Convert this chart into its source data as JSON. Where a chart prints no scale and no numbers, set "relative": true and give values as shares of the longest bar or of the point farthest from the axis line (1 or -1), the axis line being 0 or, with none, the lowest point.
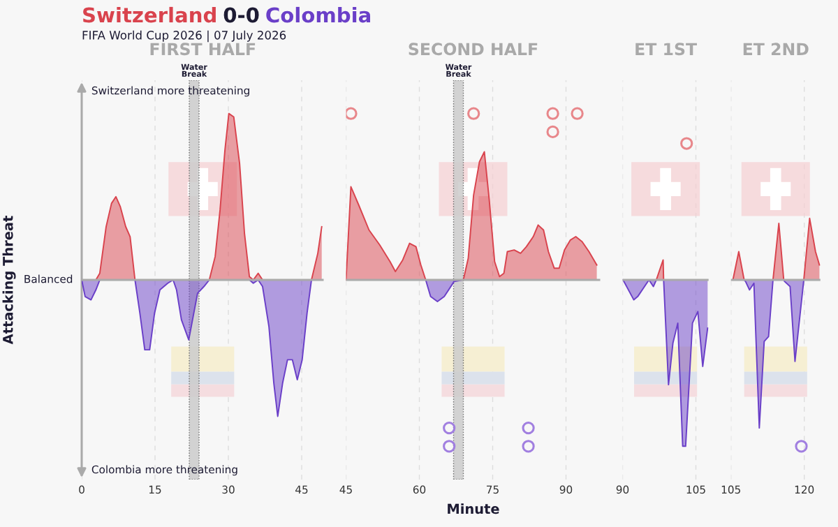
{
  "chart_data": [
    {
      "type": "area",
      "title": "FIRST HALF",
      "ylabel": "Attacking Threat",
      "relative": true,
      "grid": "x",
      "tick_labels": "x",
      "xlim": [
        0,
        49.5
      ],
      "xticks": [
        0,
        15,
        30,
        45
      ],
      "annotations": [
        "Switzerland 0-0 Colombia",
        "FIFA World Cup 2026 | 07 July 2026",
        "Switzerland more threatening",
        "Colombia more threatening",
        {
          "text": "Balanced",
          "x": 0,
          "y": 0
        }
      ],
      "x": [
        0,
        0.7,
        1.9,
        2.9,
        3.7,
        5,
        6.1,
        7,
        7.9,
        9,
        9.9,
        10.9,
        11.9,
        12.9,
        13.9,
        14.9,
        16,
        17.6,
        18.7,
        19.4,
        20.4,
        21.9,
        23.7,
        25,
        26.1,
        27.3,
        28.3,
        29.3,
        30.1,
        31.1,
        32.3,
        33.3,
        34.3,
        35.1,
        36.1,
        37,
        38.3,
        39.3,
        40.1,
        41.1,
        42.1,
        43.1,
        44.1,
        45.1,
        46.1,
        47,
        48.3,
        49.1
      ],
      "series": [
        {
          "color": "#d9434d",
          "values": [
            0,
            0,
            0,
            0,
            0.04,
            0.32,
            0.46,
            0.5,
            0.44,
            0.32,
            0.26,
            0,
            0,
            0,
            0,
            0,
            0,
            0,
            0,
            0,
            0,
            0,
            0,
            0,
            0,
            0.14,
            0.42,
            0.78,
            1,
            0.98,
            0.7,
            0.28,
            0.02,
            0,
            0.04,
            0,
            0,
            0,
            0,
            0,
            0,
            0,
            0,
            0,
            0,
            0,
            0.16,
            0.32
          ]
        },
        {
          "color": "#6a3fc8",
          "values": [
            0,
            -0.1,
            -0.12,
            -0.06,
            0,
            0,
            0,
            0,
            0,
            0,
            0,
            0,
            -0.2,
            -0.42,
            -0.42,
            -0.2,
            -0.06,
            -0.02,
            0,
            -0.06,
            -0.24,
            -0.36,
            -0.08,
            -0.04,
            0,
            0,
            0,
            0,
            0,
            0,
            0,
            0,
            0,
            -0.02,
            0,
            -0.04,
            -0.28,
            -0.62,
            -0.82,
            -0.62,
            -0.48,
            -0.48,
            -0.6,
            -0.48,
            -0.2,
            0,
            0,
            0
          ]
        }
      ],
      "bands": [
        {
          "axis": "x",
          "from": 22,
          "to": 24,
          "label": "Water Break",
          "color": "#cccccc"
        }
      ]
    },
    {
      "type": "area",
      "title": "SECOND HALF",
      "xlabel": "Minute",
      "relative": true,
      "grid": "x",
      "tick_labels": "x",
      "xlim": [
        45,
        97
      ],
      "xticks": [
        45,
        60,
        75,
        90
      ],
      "x": [
        45,
        46,
        47.6,
        49.7,
        51.9,
        54,
        55.1,
        56.6,
        58,
        59.3,
        60.3,
        61.3,
        62.3,
        63.7,
        65.1,
        67.1,
        69,
        70,
        71.1,
        72.3,
        73.3,
        74.3,
        75.4,
        76.4,
        77.3,
        78,
        79.4,
        80.7,
        81.9,
        83.3,
        84.3,
        85.4,
        86.4,
        87.6,
        88.6,
        89.7,
        90.9,
        92,
        93.3,
        94.7,
        96.3
      ],
      "series": [
        {
          "color": "#d9434d",
          "values": [
            0,
            0.56,
            0.45,
            0.3,
            0.21,
            0.11,
            0.05,
            0.12,
            0.22,
            0.2,
            0.09,
            0,
            0,
            0,
            0,
            0,
            0,
            0.13,
            0.51,
            0.71,
            0.77,
            0.48,
            0.11,
            0.02,
            0.04,
            0.17,
            0.18,
            0.16,
            0.2,
            0.26,
            0.33,
            0.3,
            0.17,
            0.07,
            0.07,
            0.18,
            0.24,
            0.26,
            0.23,
            0.17,
            0.09
          ]
        },
        {
          "color": "#6a3fc8",
          "values": [
            0,
            0,
            0,
            0,
            0,
            0,
            0,
            0,
            0,
            0,
            0,
            0,
            -0.1,
            -0.13,
            -0.1,
            -0.01,
            0,
            0,
            0,
            0,
            0,
            0,
            0,
            0,
            0,
            0,
            0,
            0,
            0,
            0,
            0,
            0,
            0,
            0,
            0,
            0,
            0,
            0,
            0,
            0,
            0
          ]
        },
        {
          "type": "scatter",
          "marker": "circle",
          "color": "#e8878b",
          "x": [
            46,
            71.1,
            87.3,
            87.3,
            92.3
          ],
          "values": [
            1,
            1,
            1,
            0.89,
            1
          ]
        },
        {
          "type": "scatter",
          "marker": "circle",
          "color": "#a17fe0",
          "x": [
            66.1,
            66.1,
            82.3,
            82.3
          ],
          "values": [
            -0.89,
            -1,
            -0.89,
            -1
          ]
        }
      ],
      "bands": [
        {
          "axis": "x",
          "from": 67,
          "to": 69,
          "label": "Water Break",
          "color": "#cccccc"
        }
      ]
    },
    {
      "type": "area",
      "title": "ET 1ST",
      "relative": true,
      "grid": "x",
      "tick_labels": "x",
      "xlim": [
        90,
        107.6
      ],
      "xticks": [
        90,
        105
      ],
      "x": [
        90.1,
        92.3,
        93.1,
        95.4,
        96.3,
        96.9,
        98.3,
        98.4,
        99.4,
        100.3,
        101.3,
        102.3,
        102.9,
        104.3,
        105.4,
        106.4,
        107.4
      ],
      "series": [
        {
          "color": "#d9434d",
          "values": [
            0,
            0,
            0,
            0,
            0,
            0,
            0.12,
            0,
            0,
            0,
            0,
            0,
            0,
            0,
            0,
            0,
            0
          ]
        },
        {
          "color": "#6a3fc8",
          "values": [
            0,
            -0.12,
            -0.1,
            0,
            -0.04,
            0,
            0,
            0,
            -0.63,
            -0.38,
            -0.26,
            -1,
            -1,
            -0.26,
            -0.19,
            -0.52,
            -0.29
          ]
        },
        {
          "type": "scatter",
          "marker": "circle",
          "color": "#e8878b",
          "x": [
            103.1
          ],
          "values": [
            0.82
          ]
        }
      ]
    },
    {
      "type": "area",
      "title": "ET 2ND",
      "relative": true,
      "grid": "x",
      "tick_labels": "x",
      "xlim": [
        105,
        123.3
      ],
      "xticks": [
        105,
        120
      ],
      "x": [
        105.4,
        106.6,
        107.7,
        108,
        108.8,
        109.7,
        110.8,
        111.8,
        112.7,
        113.6,
        114.8,
        115.8,
        116,
        117.1,
        118.1,
        119.9,
        121.1,
        122.3,
        123.1
      ],
      "series": [
        {
          "color": "#d9434d",
          "values": [
            0,
            0.17,
            0,
            0,
            0,
            0,
            0,
            0,
            0,
            0,
            0.34,
            0,
            0,
            0,
            0,
            0,
            0.37,
            0.17,
            0.09
          ]
        },
        {
          "color": "#6a3fc8",
          "values": [
            0,
            0,
            0,
            -0.01,
            -0.06,
            -0.02,
            -0.89,
            -0.37,
            -0.34,
            0,
            0,
            0,
            -0.01,
            -0.04,
            -0.49,
            0,
            0,
            0,
            0
          ]
        },
        {
          "type": "scatter",
          "marker": "circle",
          "color": "#a17fe0",
          "x": [
            119.4
          ],
          "values": [
            -1
          ]
        }
      ]
    }
  ]
}
